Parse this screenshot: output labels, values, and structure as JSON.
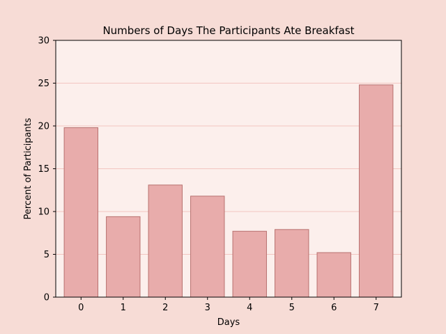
{
  "chart_data": {
    "type": "bar",
    "title": "Numbers of Days The Participants Ate Breakfast",
    "xlabel": "Days",
    "ylabel": "Percent of Participants",
    "categories": [
      "0",
      "1",
      "2",
      "3",
      "4",
      "5",
      "6",
      "7"
    ],
    "values": [
      19.8,
      9.4,
      13.1,
      11.8,
      7.7,
      7.9,
      5.2,
      24.8
    ],
    "ylim": [
      0,
      30
    ],
    "yticks": [
      "0",
      "5",
      "10",
      "15",
      "20",
      "25",
      "30"
    ],
    "grid": "horizontal",
    "colors": {
      "figure_background": "#f7dcd6",
      "plot_background": "#fcefec",
      "bar_fill": "#e8acab",
      "bar_edge": "#b8716f",
      "grid": "#f2c4c0",
      "axis": "#000000"
    }
  }
}
